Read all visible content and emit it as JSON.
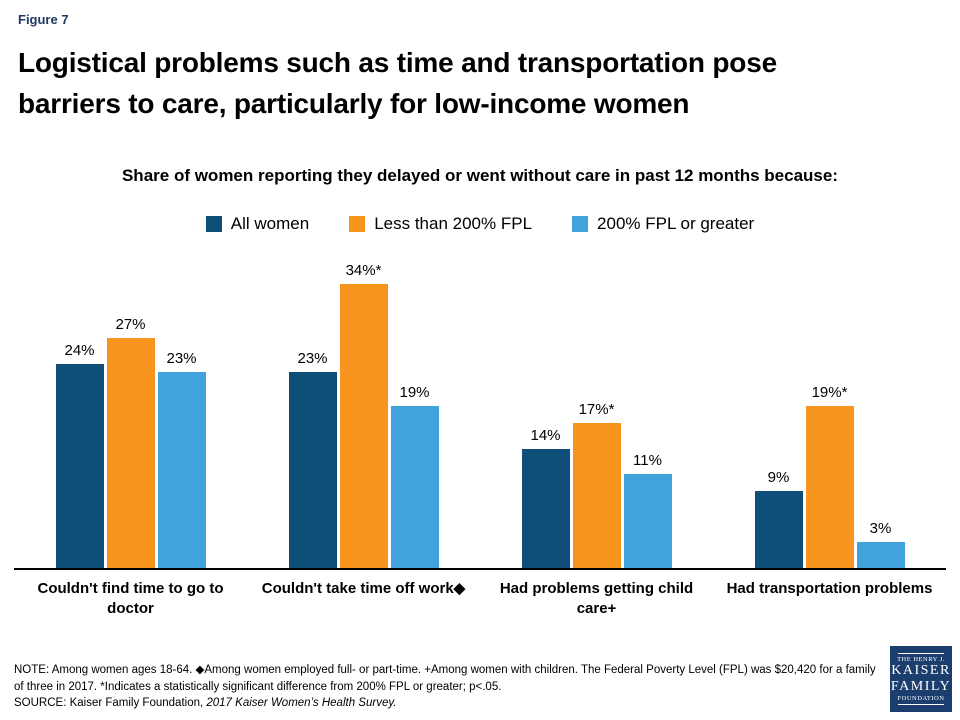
{
  "figure_label": "Figure 7",
  "title_line1": "Logistical problems such as time and transportation pose",
  "title_line2": "barriers to care, particularly for low-income women",
  "subtitle": "Share of women reporting they delayed or went without care in past 12 months because:",
  "chart_data": {
    "type": "bar",
    "categories": [
      "Couldn't find time to go to doctor",
      "Couldn't take time off work◆",
      "Had problems getting child care+",
      "Had transportation problems"
    ],
    "series": [
      {
        "name": "All women",
        "color": "#0f4e79",
        "values": [
          24,
          23,
          14,
          9
        ],
        "labels": [
          "24%",
          "23%",
          "14%",
          "9%"
        ]
      },
      {
        "name": "Less than 200% FPL",
        "color": "#f7941e",
        "values": [
          27,
          34,
          17,
          19
        ],
        "labels": [
          "27%",
          "34%*",
          "17%*",
          "19%*"
        ]
      },
      {
        "name": "200% FPL or greater",
        "color": "#41a2dc",
        "values": [
          23,
          19,
          11,
          3
        ],
        "labels": [
          "23%",
          "19%",
          "11%",
          "3%"
        ]
      }
    ],
    "ylim": [
      0,
      36
    ],
    "grid": false,
    "legend_position": "top",
    "value_label_suffix": "%"
  },
  "note": {
    "note_text": "NOTE: Among women ages 18-64. ◆Among women employed full- or part-time. +Among women with children. The Federal Poverty Level (FPL) was $20,420 for a family of three in 2017. *Indicates a statistically significant difference from 200% FPL or greater;  p<.05.",
    "source_prefix": "SOURCE:  Kaiser Family Foundation, ",
    "source_italic": "2017 Kaiser Women’s Health Survey."
  },
  "logo": {
    "line1": "THE HENRY J.",
    "line2": "KAISER",
    "line3": "FAMILY",
    "line4": "FOUNDATION"
  }
}
